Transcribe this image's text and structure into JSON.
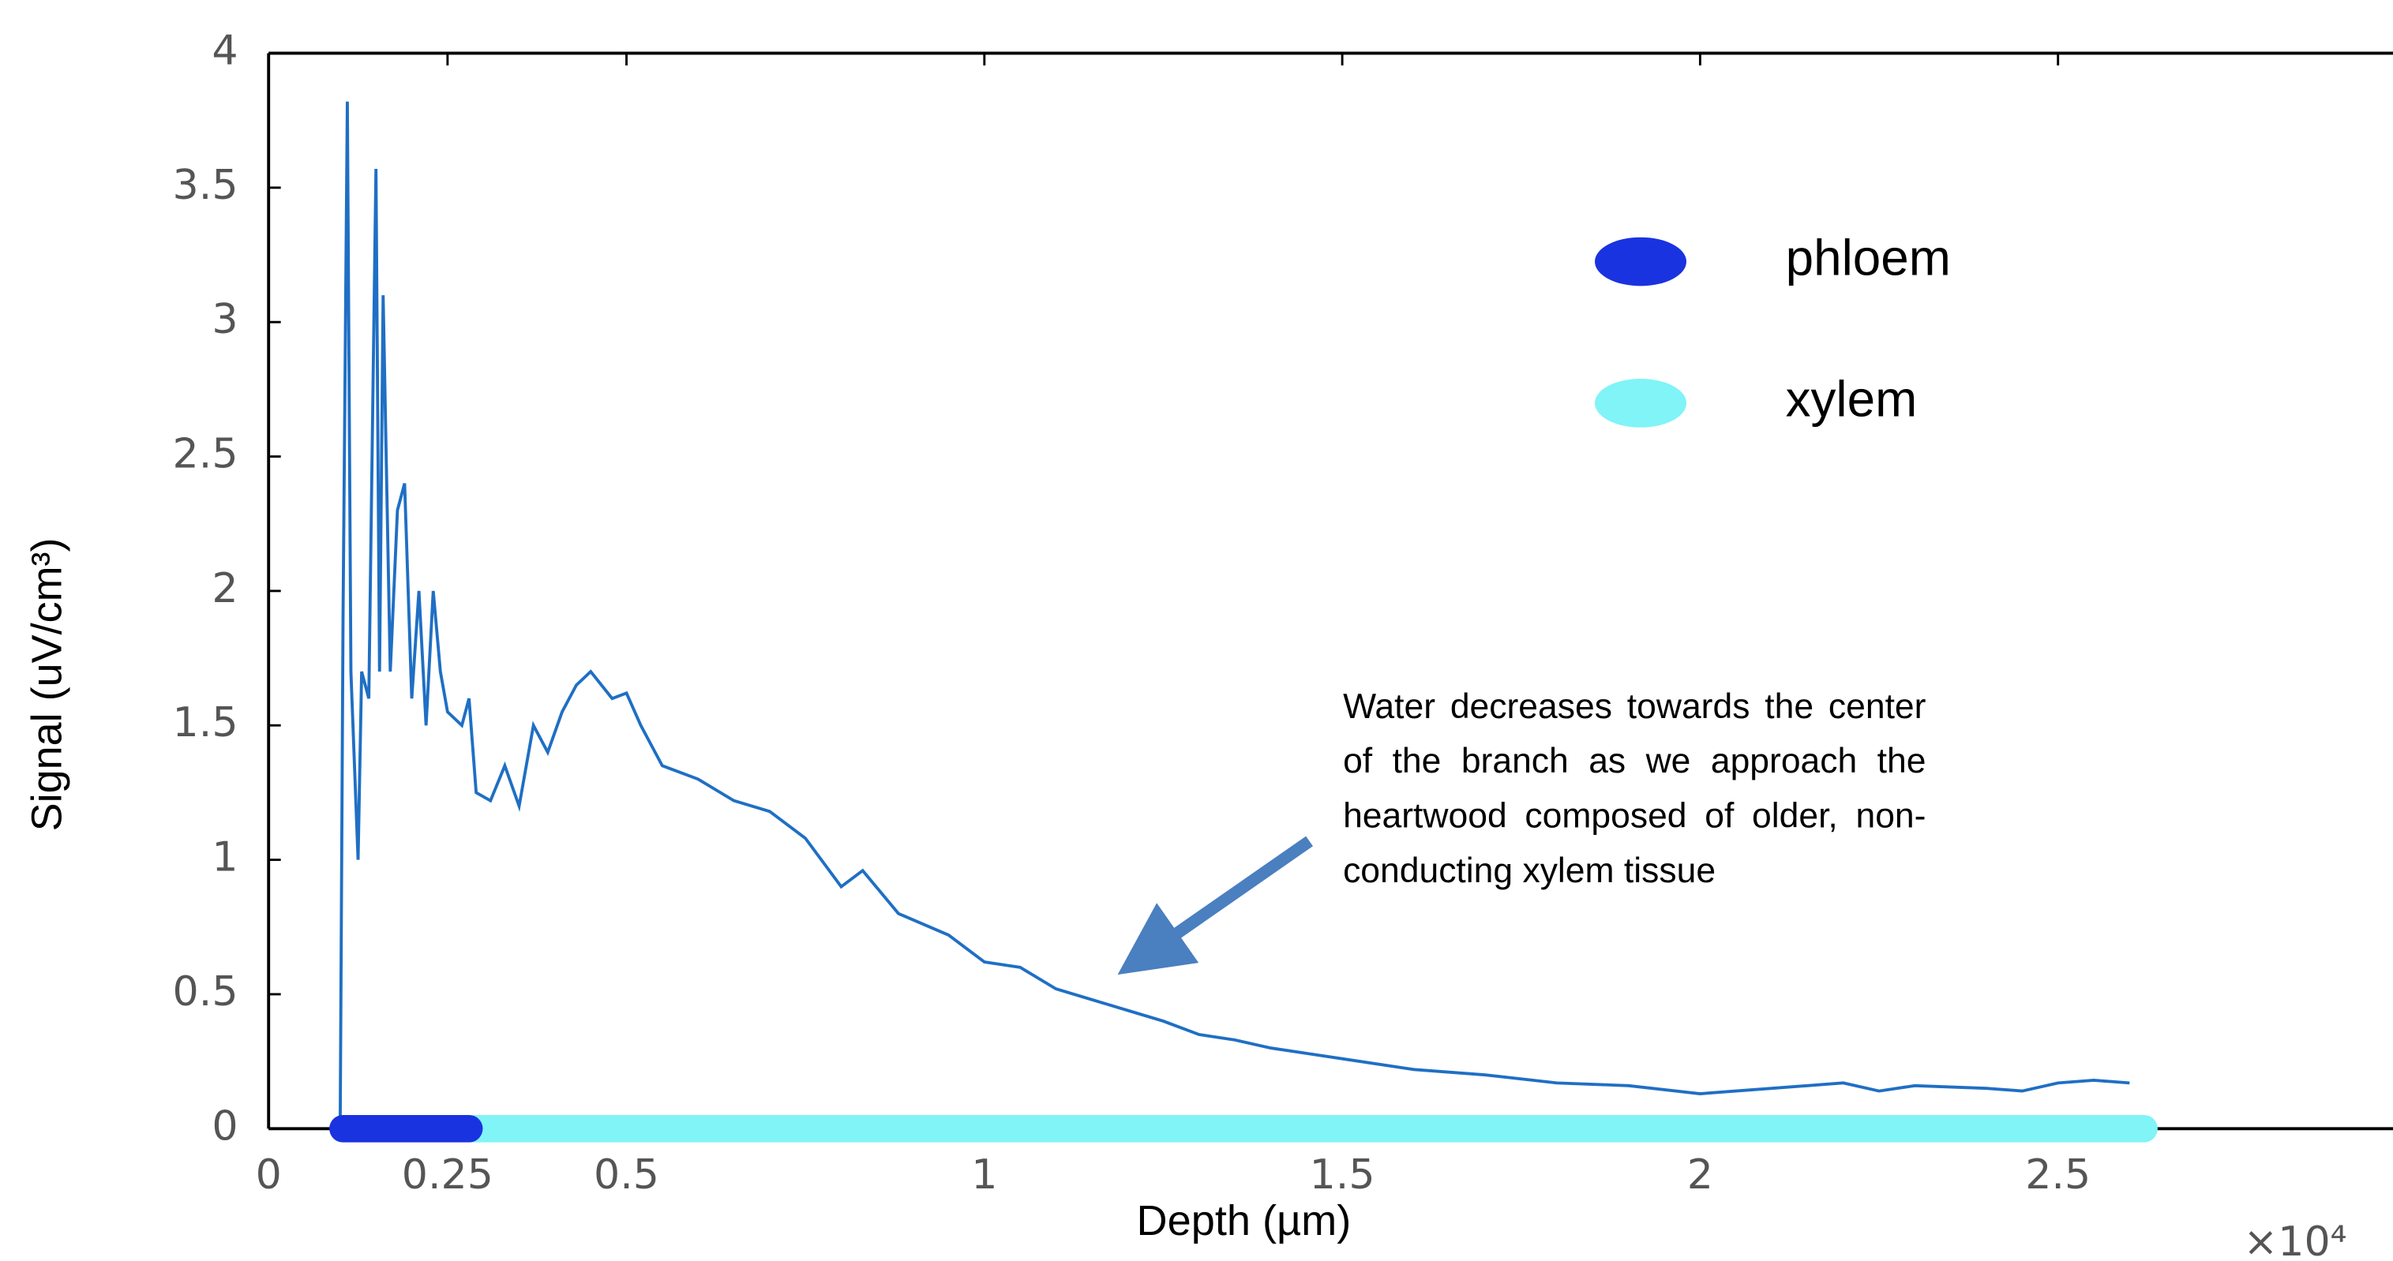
{
  "chart_data": {
    "type": "line",
    "x_label": "Depth (µm)",
    "y_label": "Signal (uV/cm³)",
    "x_multiplier": "×10⁴",
    "color": "#1f6fc4",
    "x": [
      0.1,
      0.104,
      0.11,
      0.115,
      0.125,
      0.13,
      0.14,
      0.15,
      0.155,
      0.16,
      0.17,
      0.18,
      0.19,
      0.2,
      0.21,
      0.22,
      0.23,
      0.24,
      0.25,
      0.27,
      0.28,
      0.29,
      0.31,
      0.33,
      0.35,
      0.37,
      0.39,
      0.41,
      0.43,
      0.45,
      0.48,
      0.5,
      0.52,
      0.55,
      0.6,
      0.65,
      0.7,
      0.75,
      0.8,
      0.83,
      0.88,
      0.95,
      1.0,
      1.05,
      1.1,
      1.15,
      1.2,
      1.25,
      1.3,
      1.35,
      1.4,
      1.45,
      1.5,
      1.6,
      1.7,
      1.8,
      1.9,
      2.0,
      2.05,
      2.1,
      2.2,
      2.25,
      2.3,
      2.4,
      2.45,
      2.5,
      2.55,
      2.6
    ],
    "values": [
      0,
      1.9,
      3.82,
      1.7,
      1.0,
      1.7,
      1.6,
      3.57,
      1.7,
      3.1,
      1.7,
      2.3,
      2.4,
      1.6,
      2.0,
      1.5,
      2.0,
      1.7,
      1.55,
      1.5,
      1.6,
      1.25,
      1.22,
      1.35,
      1.2,
      1.5,
      1.4,
      1.55,
      1.65,
      1.7,
      1.6,
      1.62,
      1.5,
      1.35,
      1.3,
      1.22,
      1.18,
      1.08,
      0.9,
      0.96,
      0.8,
      0.72,
      0.62,
      0.6,
      0.52,
      0.48,
      0.44,
      0.4,
      0.35,
      0.33,
      0.3,
      0.28,
      0.26,
      0.22,
      0.2,
      0.17,
      0.16,
      0.13,
      0.14,
      0.15,
      0.17,
      0.14,
      0.16,
      0.15,
      0.14,
      0.17,
      0.18,
      0.17
    ],
    "regions": [
      {
        "name": "phloem",
        "color": "#1a33e0",
        "range": [
          0.104,
          0.28
        ]
      },
      {
        "name": "xylem",
        "color": "#80f4f7",
        "range": [
          0.28,
          2.62
        ]
      }
    ],
    "xlim": [
      0,
      3
    ],
    "ylim": [
      0,
      4
    ],
    "xticks": [
      0,
      0.25,
      0.5,
      1,
      1.5,
      2,
      2.5
    ],
    "yticks": [
      0,
      0.5,
      1,
      1.5,
      2,
      2.5,
      3,
      3.5,
      4
    ],
    "annotation": "Water decreases towards the center of the branch as we approach the heartwood composed of older, non-conducting xylem tissue"
  }
}
